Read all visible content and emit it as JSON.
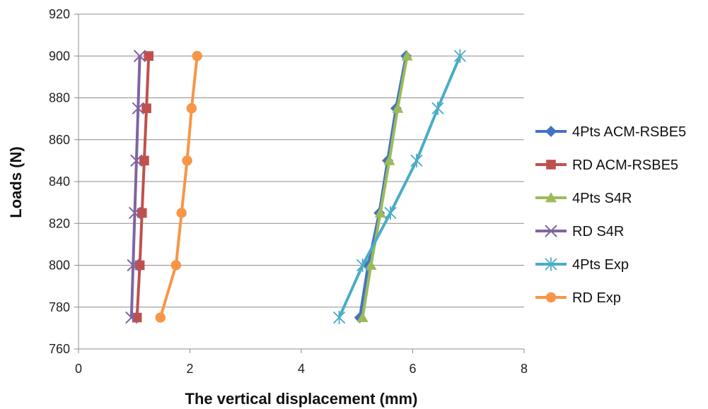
{
  "chart_data": {
    "type": "line",
    "title": "",
    "xlabel": "The vertical displacement (mm)",
    "ylabel": "Loads (N)",
    "xlim": [
      0,
      8
    ],
    "ylim": [
      760,
      920
    ],
    "xticks": [
      0,
      2,
      4,
      6,
      8
    ],
    "yticks": [
      760,
      780,
      800,
      820,
      840,
      860,
      880,
      900,
      920
    ],
    "grid": "horizontal",
    "legend_position": "right",
    "series": [
      {
        "name": "4Pts ACM-RSBE5",
        "color": "#4472c4",
        "marker": "diamond",
        "points": [
          [
            5.05,
            775
          ],
          [
            5.2,
            800
          ],
          [
            5.4,
            825
          ],
          [
            5.55,
            850
          ],
          [
            5.7,
            875
          ],
          [
            5.88,
            900
          ]
        ]
      },
      {
        "name": "RD ACM-RSBE5",
        "color": "#c0504d",
        "marker": "square",
        "points": [
          [
            1.05,
            775
          ],
          [
            1.1,
            800
          ],
          [
            1.14,
            825
          ],
          [
            1.18,
            850
          ],
          [
            1.22,
            875
          ],
          [
            1.26,
            900
          ]
        ]
      },
      {
        "name": "4Pts S4R",
        "color": "#9bbb59",
        "marker": "triangle",
        "points": [
          [
            5.1,
            775
          ],
          [
            5.25,
            800
          ],
          [
            5.42,
            825
          ],
          [
            5.58,
            850
          ],
          [
            5.73,
            875
          ],
          [
            5.9,
            900
          ]
        ]
      },
      {
        "name": "RD S4R",
        "color": "#8064a2",
        "marker": "x",
        "points": [
          [
            0.95,
            775
          ],
          [
            0.98,
            800
          ],
          [
            1.01,
            825
          ],
          [
            1.04,
            850
          ],
          [
            1.07,
            875
          ],
          [
            1.1,
            900
          ]
        ]
      },
      {
        "name": "4Pts Exp",
        "color": "#4bacc6",
        "marker": "asterisk",
        "points": [
          [
            4.68,
            775
          ],
          [
            5.1,
            800
          ],
          [
            5.6,
            825
          ],
          [
            6.07,
            850
          ],
          [
            6.45,
            875
          ],
          [
            6.85,
            900
          ]
        ]
      },
      {
        "name": "RD Exp",
        "color": "#f79646",
        "marker": "circle",
        "points": [
          [
            1.47,
            775
          ],
          [
            1.75,
            800
          ],
          [
            1.85,
            825
          ],
          [
            1.95,
            850
          ],
          [
            2.03,
            875
          ],
          [
            2.13,
            900
          ]
        ]
      }
    ]
  }
}
